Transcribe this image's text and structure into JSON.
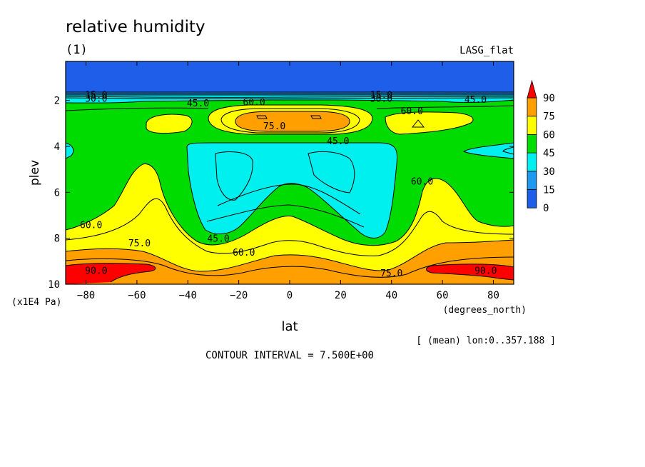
{
  "chart_data": {
    "type": "heatmap",
    "title": "relative humidity",
    "subtitle": "(1)",
    "run_label": "LASG_flat",
    "xlabel": "lat",
    "x_units": "(degrees_north)",
    "ylabel": "plev",
    "y_units": "(x1E4 Pa)",
    "xlim": [
      -88,
      88
    ],
    "ylim": [
      0.3,
      10
    ],
    "y_axis_inverted": true,
    "x_ticks": [
      -80,
      -60,
      -40,
      -20,
      0,
      20,
      40,
      60,
      80
    ],
    "x_tick_labels": [
      "−80",
      "−60",
      "−40",
      "−20",
      "0",
      "20",
      "40",
      "60",
      "80"
    ],
    "y_ticks": [
      2,
      4,
      6,
      8,
      10
    ],
    "y_tick_labels": [
      "2",
      "4",
      "6",
      "8",
      "10"
    ],
    "colorbar": {
      "levels": [
        0,
        15,
        30,
        45,
        60,
        75,
        90
      ],
      "labels": [
        "0",
        "15",
        "30",
        "45",
        "60",
        "75",
        "90"
      ],
      "colors": [
        "#1f5ee8",
        "#1f98f0",
        "#00f0f0",
        "#00dc00",
        "#ffff00",
        "#ffa000",
        "#ff0000"
      ]
    },
    "contour_interval_text": "CONTOUR INTERVAL = 7.500E+00",
    "mean_note": "[ (mean) lon:0..357.188 ]",
    "contour_labels": [
      {
        "text": "15.0",
        "lat": -76,
        "plev": 1.75
      },
      {
        "text": "30.0",
        "lat": -76,
        "plev": 1.9
      },
      {
        "text": "15.0",
        "lat": 36,
        "plev": 1.75
      },
      {
        "text": "30.0",
        "lat": 36,
        "plev": 1.9
      },
      {
        "text": "45.0",
        "lat": -36,
        "plev": 2.1
      },
      {
        "text": "60.0",
        "lat": -14,
        "plev": 2.05
      },
      {
        "text": "45.0",
        "lat": 73,
        "plev": 1.95
      },
      {
        "text": "60.0",
        "lat": 48,
        "plev": 2.45
      },
      {
        "text": "75.0",
        "lat": -6,
        "plev": 3.1
      },
      {
        "text": "45.0",
        "lat": 19,
        "plev": 3.75
      },
      {
        "text": "60.0",
        "lat": 52,
        "plev": 5.5
      },
      {
        "text": "60.0",
        "lat": -78,
        "plev": 7.4
      },
      {
        "text": "45.0",
        "lat": -28,
        "plev": 8.0
      },
      {
        "text": "75.0",
        "lat": -59,
        "plev": 8.2
      },
      {
        "text": "60.0",
        "lat": -18,
        "plev": 8.6
      },
      {
        "text": "90.0",
        "lat": -76,
        "plev": 9.4
      },
      {
        "text": "75.0",
        "lat": 40,
        "plev": 9.5
      },
      {
        "text": "90.0",
        "lat": 77,
        "plev": 9.4
      }
    ]
  }
}
